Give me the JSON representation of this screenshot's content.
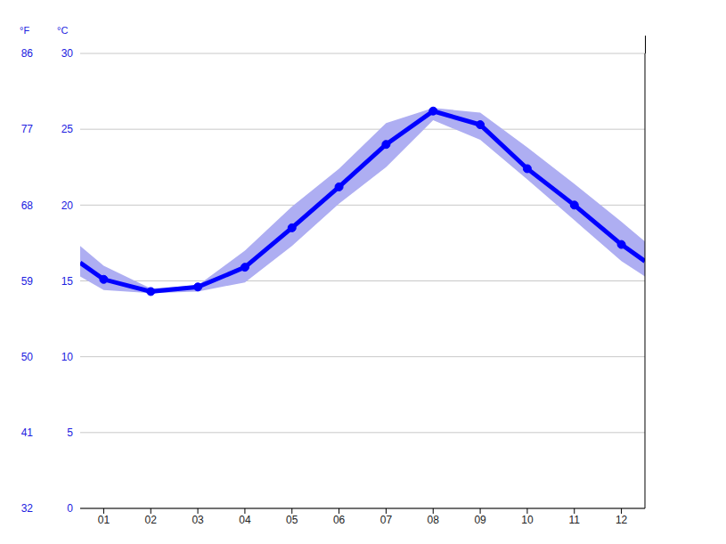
{
  "chart_data": {
    "type": "line",
    "x": [
      0.5,
      1,
      2,
      3,
      4,
      5,
      6,
      7,
      8,
      9,
      10,
      11,
      12,
      12.5
    ],
    "xlim": [
      0.5,
      12.5
    ],
    "xticks": [
      {
        "value": 1,
        "label": "01"
      },
      {
        "value": 2,
        "label": "02"
      },
      {
        "value": 3,
        "label": "03"
      },
      {
        "value": 4,
        "label": "04"
      },
      {
        "value": 5,
        "label": "05"
      },
      {
        "value": 6,
        "label": "06"
      },
      {
        "value": 7,
        "label": "07"
      },
      {
        "value": 8,
        "label": "08"
      },
      {
        "value": 9,
        "label": "09"
      },
      {
        "value": 10,
        "label": "10"
      },
      {
        "value": 11,
        "label": "11"
      },
      {
        "value": 12,
        "label": "12"
      }
    ],
    "y_label": "°C",
    "ylim": [
      0,
      30
    ],
    "yticks": [
      0,
      5,
      10,
      15,
      20,
      25,
      30
    ],
    "y2_label": "°F",
    "y2lim": [
      32,
      86
    ],
    "y2ticks": [
      32,
      41,
      50,
      59,
      68,
      77,
      86
    ],
    "grid": true,
    "series": [
      {
        "type": "band",
        "color": "#aeaef2",
        "low": [
          15.3,
          14.4,
          14.2,
          14.3,
          14.9,
          17.3,
          20.1,
          22.5,
          25.6,
          24.3,
          21.7,
          19.0,
          16.3,
          15.3
        ],
        "high": [
          17.3,
          16.0,
          14.5,
          14.7,
          17.0,
          19.9,
          22.4,
          25.4,
          26.4,
          26.1,
          23.8,
          21.4,
          18.9,
          17.6
        ]
      },
      {
        "type": "line",
        "color": "#0000ff",
        "marker": "circle",
        "values": [
          16.2,
          15.1,
          14.3,
          14.6,
          15.9,
          18.5,
          21.2,
          24.0,
          26.2,
          25.3,
          22.4,
          20.0,
          17.4,
          16.3
        ]
      }
    ]
  }
}
